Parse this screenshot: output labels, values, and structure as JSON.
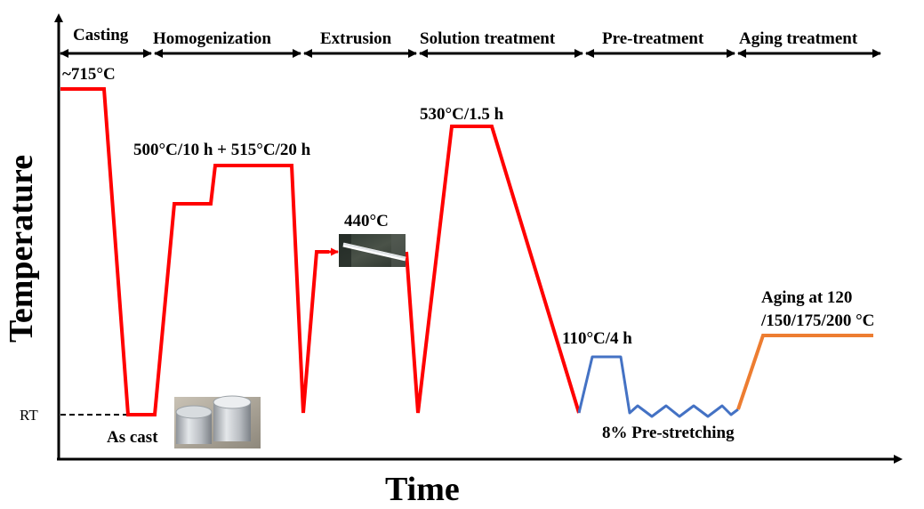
{
  "axes": {
    "x_label": "Time",
    "y_label": "Temperature",
    "rt_label": "RT"
  },
  "stages": [
    {
      "key": "casting",
      "label": "Casting"
    },
    {
      "key": "homogenization",
      "label": "Homogenization"
    },
    {
      "key": "extrusion",
      "label": "Extrusion"
    },
    {
      "key": "solution",
      "label": "Solution treatment"
    },
    {
      "key": "pretreatment",
      "label": "Pre-treatment"
    },
    {
      "key": "aging",
      "label": "Aging treatment"
    }
  ],
  "annotations": {
    "casting_temp": "~715°C",
    "homog_temp": "500°C/10 h + 515°C/20 h",
    "extrusion_temp": "440°C",
    "solution_temp": "530°C/1.5 h",
    "pretreat_temp": "110°C/4 h",
    "aging_line1": "Aging at 120",
    "aging_line2": "/150/175/200 °C",
    "as_cast": "As cast",
    "prestretch": "8% Pre-stretching"
  },
  "colors": {
    "casting_to_solution": "#ff0000",
    "pretreatment": "#4472c4",
    "aging": "#ed7d31",
    "axis": "#000000"
  }
}
